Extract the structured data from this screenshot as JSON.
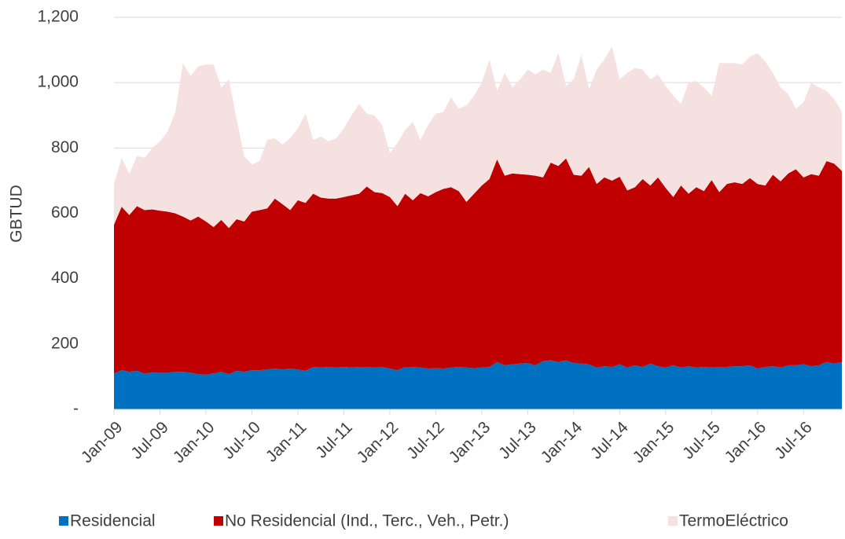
{
  "chart_data": {
    "type": "stacked_area",
    "y_label": "GBTUD",
    "categories": [
      "Jan-09",
      null,
      null,
      null,
      null,
      null,
      "Jul-09",
      null,
      null,
      null,
      null,
      null,
      "Jan-10",
      null,
      null,
      null,
      null,
      null,
      "Jul-10",
      null,
      null,
      null,
      null,
      null,
      "Jan-11",
      null,
      null,
      null,
      null,
      null,
      "Jul-11",
      null,
      null,
      null,
      null,
      null,
      "Jan-12",
      null,
      null,
      null,
      null,
      null,
      "Jul-12",
      null,
      null,
      null,
      null,
      null,
      "Jan-13",
      null,
      null,
      null,
      null,
      null,
      "Jul-13",
      null,
      null,
      null,
      null,
      null,
      "Jan-14",
      null,
      null,
      null,
      null,
      null,
      "Jul-14",
      null,
      null,
      null,
      null,
      null,
      "Jan-15",
      null,
      null,
      null,
      null,
      null,
      "Jul-15",
      null,
      null,
      null,
      null,
      null,
      "Jan-16",
      null,
      null,
      null,
      null,
      null,
      "Jul-16",
      null,
      null,
      null,
      null,
      null
    ],
    "series": [
      {
        "name": "Residencial",
        "color": "#0070c0",
        "values": [
          110,
          120,
          115,
          118,
          110,
          113,
          112,
          112,
          115,
          115,
          112,
          108,
          106,
          110,
          115,
          108,
          118,
          115,
          120,
          120,
          122,
          125,
          122,
          125,
          122,
          118,
          130,
          128,
          130,
          128,
          130,
          128,
          130,
          130,
          128,
          130,
          125,
          120,
          130,
          130,
          128,
          125,
          126,
          125,
          128,
          130,
          128,
          126,
          128,
          130,
          145,
          135,
          138,
          140,
          142,
          135,
          148,
          150,
          145,
          150,
          142,
          140,
          138,
          128,
          132,
          130,
          138,
          128,
          135,
          130,
          140,
          132,
          128,
          135,
          128,
          132,
          128,
          130,
          128,
          130,
          130,
          132,
          132,
          135,
          125,
          130,
          132,
          128,
          135,
          135,
          138,
          132,
          135,
          145,
          140,
          145
        ]
      },
      {
        "name": "No Residencial (Ind., Terc., Veh., Petr.)",
        "color": "#c00000",
        "values": [
          455,
          500,
          480,
          504,
          500,
          499,
          496,
          493,
          485,
          475,
          466,
          482,
          469,
          448,
          465,
          447,
          464,
          460,
          485,
          490,
          493,
          520,
          506,
          485,
          518,
          514,
          530,
          520,
          515,
          517,
          520,
          527,
          530,
          552,
          537,
          532,
          525,
          502,
          530,
          510,
          534,
          527,
          539,
          550,
          552,
          538,
          507,
          534,
          557,
          575,
          620,
          580,
          584,
          580,
          576,
          580,
          562,
          605,
          600,
          618,
          576,
          575,
          604,
          562,
          578,
          570,
          574,
          542,
          545,
          575,
          545,
          578,
          550,
          515,
          557,
          528,
          552,
          538,
          574,
          535,
          560,
          563,
          558,
          573,
          565,
          555,
          586,
          570,
          587,
          600,
          572,
          588,
          580,
          615,
          612,
          585
        ]
      },
      {
        "name": "TermoEléctrico",
        "color": "#f6e1e1",
        "values": [
          125,
          150,
          125,
          153,
          160,
          188,
          212,
          245,
          310,
          470,
          442,
          460,
          480,
          497,
          405,
          455,
          308,
          200,
          145,
          150,
          210,
          185,
          182,
          220,
          220,
          273,
          165,
          187,
          175,
          185,
          210,
          245,
          275,
          223,
          235,
          208,
          135,
          193,
          195,
          240,
          163,
          218,
          240,
          235,
          275,
          252,
          295,
          300,
          315,
          365,
          210,
          315,
          263,
          290,
          322,
          310,
          330,
          275,
          345,
          222,
          292,
          370,
          238,
          350,
          360,
          410,
          298,
          360,
          365,
          335,
          325,
          315,
          312,
          310,
          250,
          340,
          325,
          317,
          258,
          395,
          370,
          365,
          365,
          372,
          400,
          380,
          312,
          287,
          243,
          185,
          230,
          280,
          270,
          215,
          198,
          180
        ]
      }
    ],
    "ylim": [
      0,
      1200
    ],
    "yticks": [
      {
        "value": 0,
        "label": "-"
      },
      200,
      400,
      600,
      800,
      {
        "value": 1000,
        "label": "1,000"
      },
      {
        "value": 1200,
        "label": "1,200"
      }
    ],
    "grid": true,
    "legend": "bottom"
  }
}
